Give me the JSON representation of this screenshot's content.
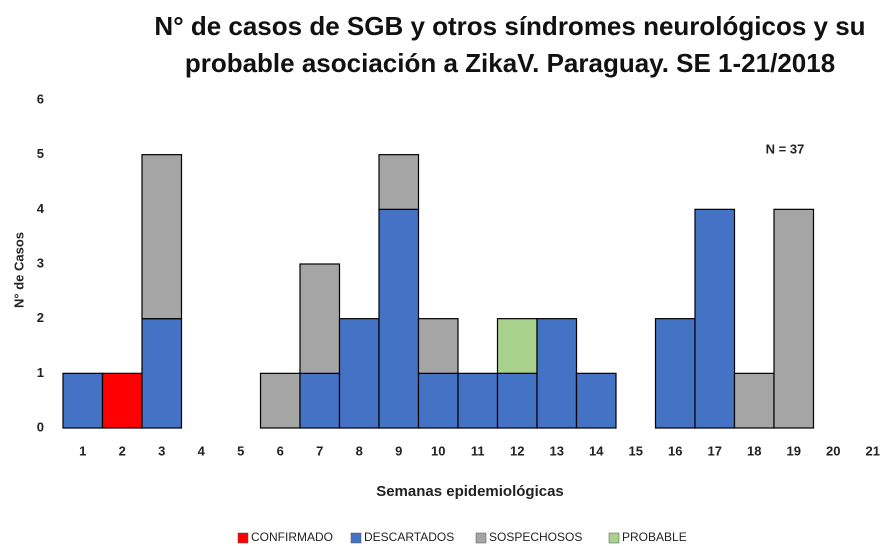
{
  "chart_data": {
    "type": "bar",
    "stacked": true,
    "title": "N° de casos de SGB y otros síndromes neurológicos y su probable asociación a ZikaV. Paraguay. SE 1-21/2018",
    "annotation": "N = 37",
    "x_label": "Semanas epidemiológicas",
    "y_label": "N° de Casos",
    "categories": [
      "1",
      "2",
      "3",
      "4",
      "5",
      "6",
      "7",
      "8",
      "9",
      "10",
      "11",
      "12",
      "13",
      "14",
      "15",
      "16",
      "17",
      "18",
      "19",
      "20",
      "21"
    ],
    "series": [
      {
        "name": "CONFIRMADO",
        "color": "#ff0000",
        "values": [
          0,
          1,
          0,
          0,
          0,
          0,
          0,
          0,
          0,
          0,
          0,
          0,
          0,
          0,
          0,
          0,
          0,
          0,
          0,
          0,
          0
        ]
      },
      {
        "name": "DESCARTADOS",
        "color": "#4472c4",
        "values": [
          1,
          0,
          2,
          0,
          0,
          0,
          1,
          2,
          4,
          1,
          1,
          1,
          2,
          1,
          0,
          2,
          4,
          0,
          0,
          0,
          0
        ]
      },
      {
        "name": "SOSPECHOSOS",
        "color": "#a5a5a5",
        "values": [
          0,
          0,
          3,
          0,
          0,
          1,
          2,
          0,
          1,
          1,
          0,
          0,
          0,
          0,
          0,
          0,
          0,
          1,
          4,
          0,
          0
        ]
      },
      {
        "name": "PROBABLE",
        "color": "#a9d18e",
        "values": [
          0,
          0,
          0,
          0,
          0,
          0,
          0,
          0,
          0,
          0,
          0,
          1,
          0,
          0,
          0,
          0,
          0,
          0,
          0,
          0,
          0
        ]
      }
    ],
    "ylim": [
      0,
      6
    ],
    "yticks": [
      0,
      1,
      2,
      3,
      4,
      5,
      6
    ],
    "grid": false,
    "legend": "bottom"
  }
}
